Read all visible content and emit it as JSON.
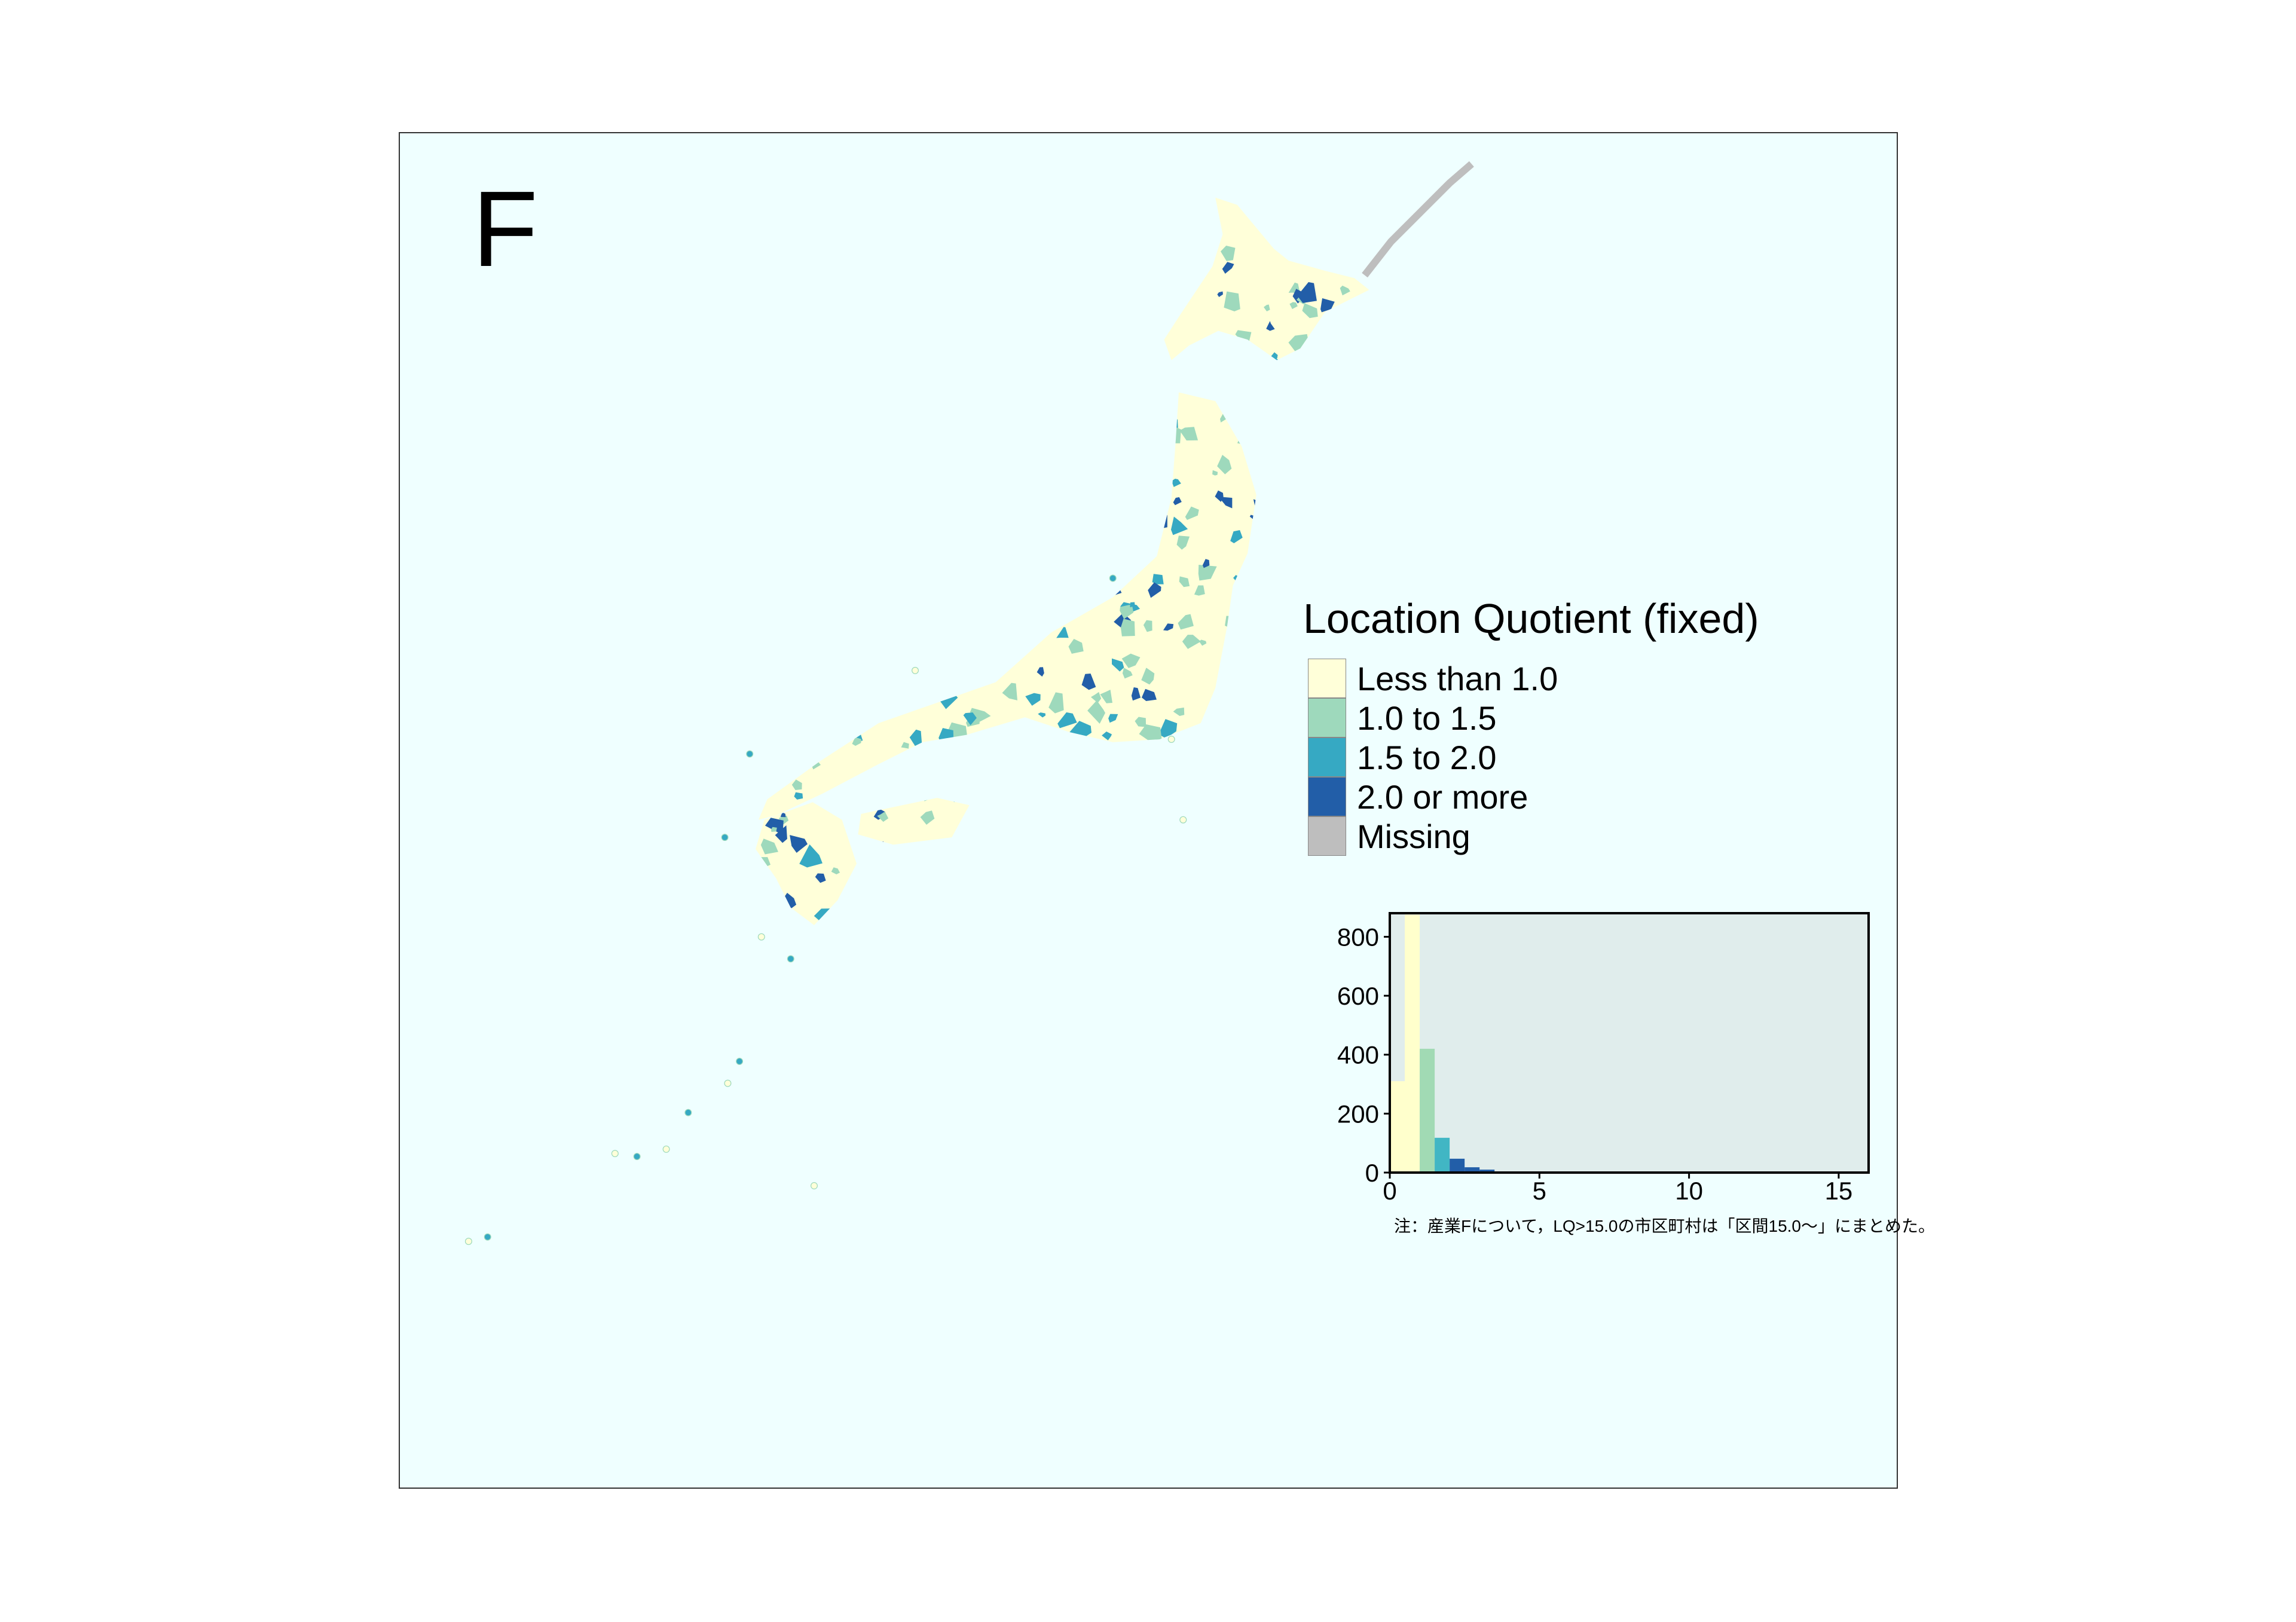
{
  "panel_label": "F",
  "legend": {
    "title": "Location Quotient (fixed)",
    "items": [
      {
        "label": "Less than 1.0",
        "color": "#FFFFD9"
      },
      {
        "label": "1.0 to 1.5",
        "color": "#9ED9BC"
      },
      {
        "label": "1.5 to 2.0",
        "color": "#36A9C3"
      },
      {
        "label": "2.0 or more",
        "color": "#225EA8"
      },
      {
        "label": "Missing",
        "color": "#BEBEBE"
      }
    ]
  },
  "colors": {
    "sea": "#EFFFFF",
    "histogram_panel": "#E0EDEC"
  },
  "chart_data": {
    "type": "bar",
    "subtype": "histogram",
    "bin_width": 0.5,
    "bins": [
      {
        "x0": 0.0,
        "count": 310,
        "color": "#FFFFCC"
      },
      {
        "x0": 0.5,
        "count": 875,
        "color": "#FFFFCC"
      },
      {
        "x0": 1.0,
        "count": 420,
        "color": "#A1DAB4"
      },
      {
        "x0": 1.5,
        "count": 118,
        "color": "#41B6C4"
      },
      {
        "x0": 2.0,
        "count": 47,
        "color": "#225EA8"
      },
      {
        "x0": 2.5,
        "count": 18,
        "color": "#225EA8"
      },
      {
        "x0": 3.0,
        "count": 10,
        "color": "#225EA8"
      },
      {
        "x0": 3.5,
        "count": 3,
        "color": "#225EA8"
      },
      {
        "x0": 6.0,
        "count": 2,
        "color": "#225EA8"
      },
      {
        "x0": 15.0,
        "count": 3,
        "color": "#225EA8"
      }
    ],
    "xlim": [
      0,
      16
    ],
    "ylim": [
      0,
      880
    ],
    "x_ticks": [
      "0",
      "5",
      "10",
      "15"
    ],
    "y_ticks": [
      "0",
      "200",
      "400",
      "600",
      "800"
    ],
    "grid": false,
    "note": "注：産業Fについて，LQ>15.0の市区町村は「区間15.0～」にまとめた。"
  }
}
